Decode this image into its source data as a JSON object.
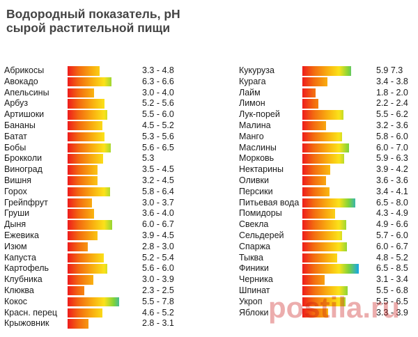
{
  "title_line1": "Водородный показатель, pH",
  "title_line2": "сырой растительной пищи",
  "watermark": "postila.ru",
  "chart_data": {
    "type": "bar",
    "title": "Водородный показатель, pH сырой растительной пищи",
    "xlim": [
      0,
      8.5
    ],
    "gradient_colors": [
      "#ee1c1c",
      "#f9b010",
      "#fbe21a",
      "#14a6e8"
    ],
    "left": [
      {
        "name": "Абрикосы",
        "range": "3.3 - 4.8",
        "value": 4.8
      },
      {
        "name": "Авокадо",
        "range": "6.3 - 6.6",
        "value": 6.6
      },
      {
        "name": "Апельсины",
        "range": "3.0 - 4.0",
        "value": 4.0
      },
      {
        "name": "Арбуз",
        "range": "5.2 - 5.6",
        "value": 5.6
      },
      {
        "name": "Артишоки",
        "range": "5.5 - 6.0",
        "value": 6.0
      },
      {
        "name": "Бананы",
        "range": "4.5 - 5.2",
        "value": 5.2
      },
      {
        "name": "Батат",
        "range": "5.3 - 5.6",
        "value": 5.6
      },
      {
        "name": "Бобы",
        "range": "5.6 - 6.5",
        "value": 6.5
      },
      {
        "name": "Брокколи",
        "range": "5.3",
        "value": 5.3
      },
      {
        "name": "Виноград",
        "range": "3.5 - 4.5",
        "value": 4.5
      },
      {
        "name": "Вишня",
        "range": "3.2 - 4.5",
        "value": 4.5
      },
      {
        "name": "Горох",
        "range": "5.8 - 6.4",
        "value": 6.4
      },
      {
        "name": "Грейпфрут",
        "range": "3.0 - 3.7",
        "value": 3.7
      },
      {
        "name": "Груши",
        "range": "3.6 - 4.0",
        "value": 4.0
      },
      {
        "name": "Дыня",
        "range": "6.0 - 6.7",
        "value": 6.7
      },
      {
        "name": "Ежевика",
        "range": "3.9 - 4.5",
        "value": 4.5
      },
      {
        "name": "Изюм",
        "range": "2.8 - 3.0",
        "value": 3.0
      },
      {
        "name": "Капуста",
        "range": "5.2 - 5.4",
        "value": 5.4
      },
      {
        "name": "Картофель",
        "range": "5.6 - 6.0",
        "value": 6.0
      },
      {
        "name": "Клубника",
        "range": "3.0 - 3.9",
        "value": 3.9
      },
      {
        "name": "Клюква",
        "range": "2.3 - 2.5",
        "value": 2.5
      },
      {
        "name": "Кокос",
        "range": "5.5 - 7.8",
        "value": 7.8
      },
      {
        "name": "Красн. перец",
        "range": "4.6 - 5.2",
        "value": 5.2
      },
      {
        "name": "Крыжовник",
        "range": "2.8 - 3.1",
        "value": 3.1
      }
    ],
    "right": [
      {
        "name": "Кукуруза",
        "range": "5.9   7.3",
        "value": 7.3
      },
      {
        "name": "Курага",
        "range": "3.4 - 3.8",
        "value": 3.8
      },
      {
        "name": "Лайм",
        "range": "1.8 - 2.0",
        "value": 2.0
      },
      {
        "name": "Лимон",
        "range": "2.2 - 2.4",
        "value": 2.4
      },
      {
        "name": "Лук-порей",
        "range": "5.5 - 6.2",
        "value": 6.2
      },
      {
        "name": "Малина",
        "range": "3.2 - 3.6",
        "value": 3.6
      },
      {
        "name": "Манго",
        "range": "5.8 - 6.0",
        "value": 6.0
      },
      {
        "name": "Маслины",
        "range": "6.0 - 7.0",
        "value": 7.0
      },
      {
        "name": "Морковь",
        "range": "5.9 - 6.3",
        "value": 6.3
      },
      {
        "name": "Нектарины",
        "range": "3.9 - 4.2",
        "value": 4.2
      },
      {
        "name": "Оливки",
        "range": "3.6 - 3.6",
        "value": 3.6
      },
      {
        "name": "Персики",
        "range": "3.4 - 4.1",
        "value": 4.1
      },
      {
        "name": "Питьевая вода",
        "range": "6.5 - 8.0",
        "value": 8.0
      },
      {
        "name": "Помидоры",
        "range": "4.3 - 4.9",
        "value": 4.9
      },
      {
        "name": "Свекла",
        "range": "4.9 - 6.6",
        "value": 6.6
      },
      {
        "name": "Сельдерей",
        "range": "5.7 - 6.0",
        "value": 6.0
      },
      {
        "name": "Спаржа",
        "range": "6.0 - 6.7",
        "value": 6.7
      },
      {
        "name": "Тыква",
        "range": "4.8 - 5.2",
        "value": 5.2
      },
      {
        "name": "Финики",
        "range": "6.5 - 8.5",
        "value": 8.5
      },
      {
        "name": "Черника",
        "range": "3.1 - 3.4",
        "value": 3.4
      },
      {
        "name": "Шпинат",
        "range": "5.5 - 6.8",
        "value": 6.8
      },
      {
        "name": "Укроп",
        "range": "5.5 - 6.5",
        "value": 6.5
      },
      {
        "name": "Яблоки",
        "range": "3.3 - 3.9",
        "value": 3.9
      }
    ]
  }
}
